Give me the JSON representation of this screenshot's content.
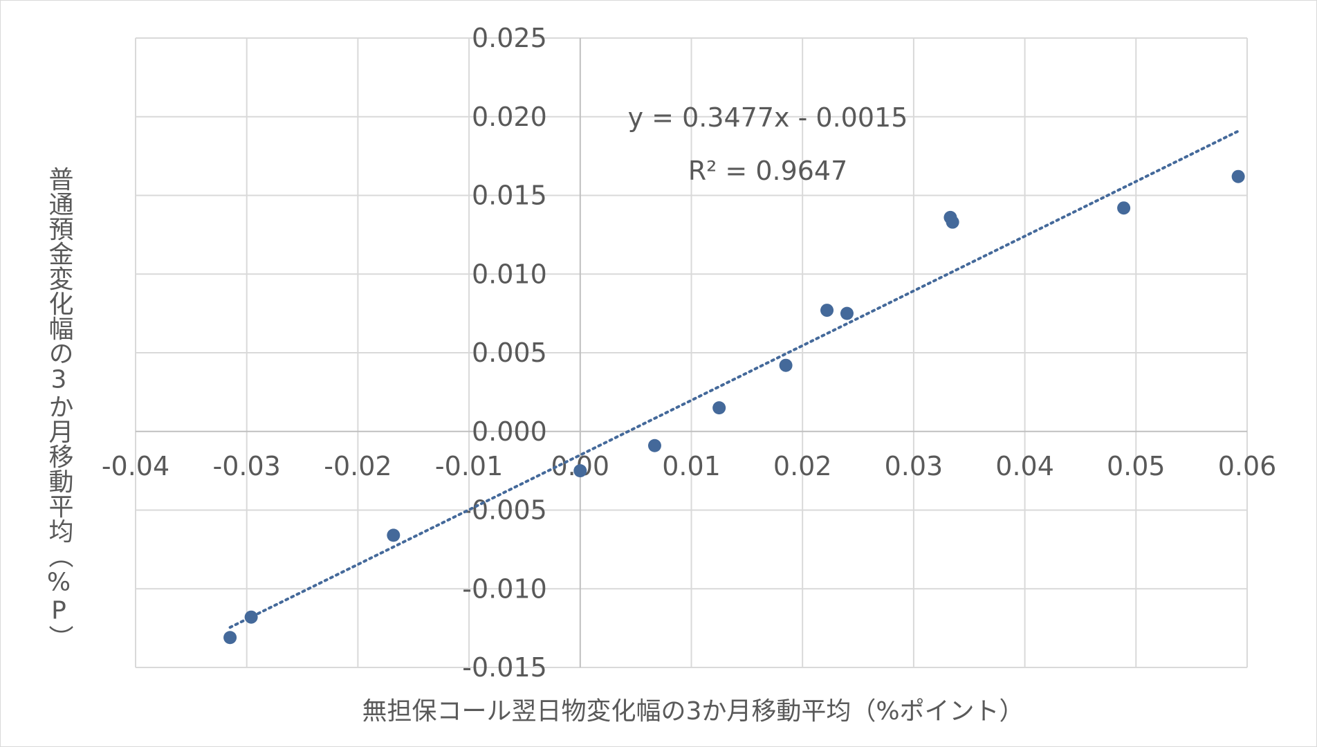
{
  "chart_data": {
    "type": "scatter",
    "title": "",
    "xlabel": "無担保コール翌日物変化幅の3か月移動平均（%ポイント）",
    "ylabel": "普通預金変化幅の3か月移動平均（%P）",
    "xlim": [
      -0.04,
      0.06
    ],
    "ylim": [
      -0.015,
      0.025
    ],
    "x_ticks": [
      "-0.04",
      "-0.03",
      "-0.02",
      "-0.01",
      "0.00",
      "0.01",
      "0.02",
      "0.03",
      "0.04",
      "0.05",
      "0.06"
    ],
    "y_ticks": [
      "0.025",
      "0.020",
      "0.015",
      "0.010",
      "0.005",
      "0.000",
      "-0.005",
      "-0.010",
      "-0.015"
    ],
    "grid": true,
    "series": [
      {
        "points": [
          {
            "x": -0.0315,
            "y": -0.0131
          },
          {
            "x": -0.0296,
            "y": -0.0118
          },
          {
            "x": -0.0168,
            "y": -0.0066
          },
          {
            "x": 0.0,
            "y": -0.0025
          },
          {
            "x": 0.0067,
            "y": -0.0009
          },
          {
            "x": 0.0125,
            "y": 0.0015
          },
          {
            "x": 0.0185,
            "y": 0.0042
          },
          {
            "x": 0.0222,
            "y": 0.0077
          },
          {
            "x": 0.024,
            "y": 0.0075
          },
          {
            "x": 0.0333,
            "y": 0.0136
          },
          {
            "x": 0.0335,
            "y": 0.0133
          },
          {
            "x": 0.0489,
            "y": 0.0142
          },
          {
            "x": 0.0592,
            "y": 0.0162
          }
        ]
      }
    ],
    "trendline": {
      "type": "linear",
      "slope": 0.3477,
      "intercept": -0.0015,
      "x_range": [
        -0.0315,
        0.0592
      ],
      "equation": "y = 0.3477x - 0.0015",
      "r2": "R² = 0.9647"
    },
    "colors": {
      "marker": "#44699a",
      "trendline": "#44699a",
      "grid": "#d9d9d9",
      "axis": "#bfbfbf",
      "text": "#595959"
    }
  }
}
